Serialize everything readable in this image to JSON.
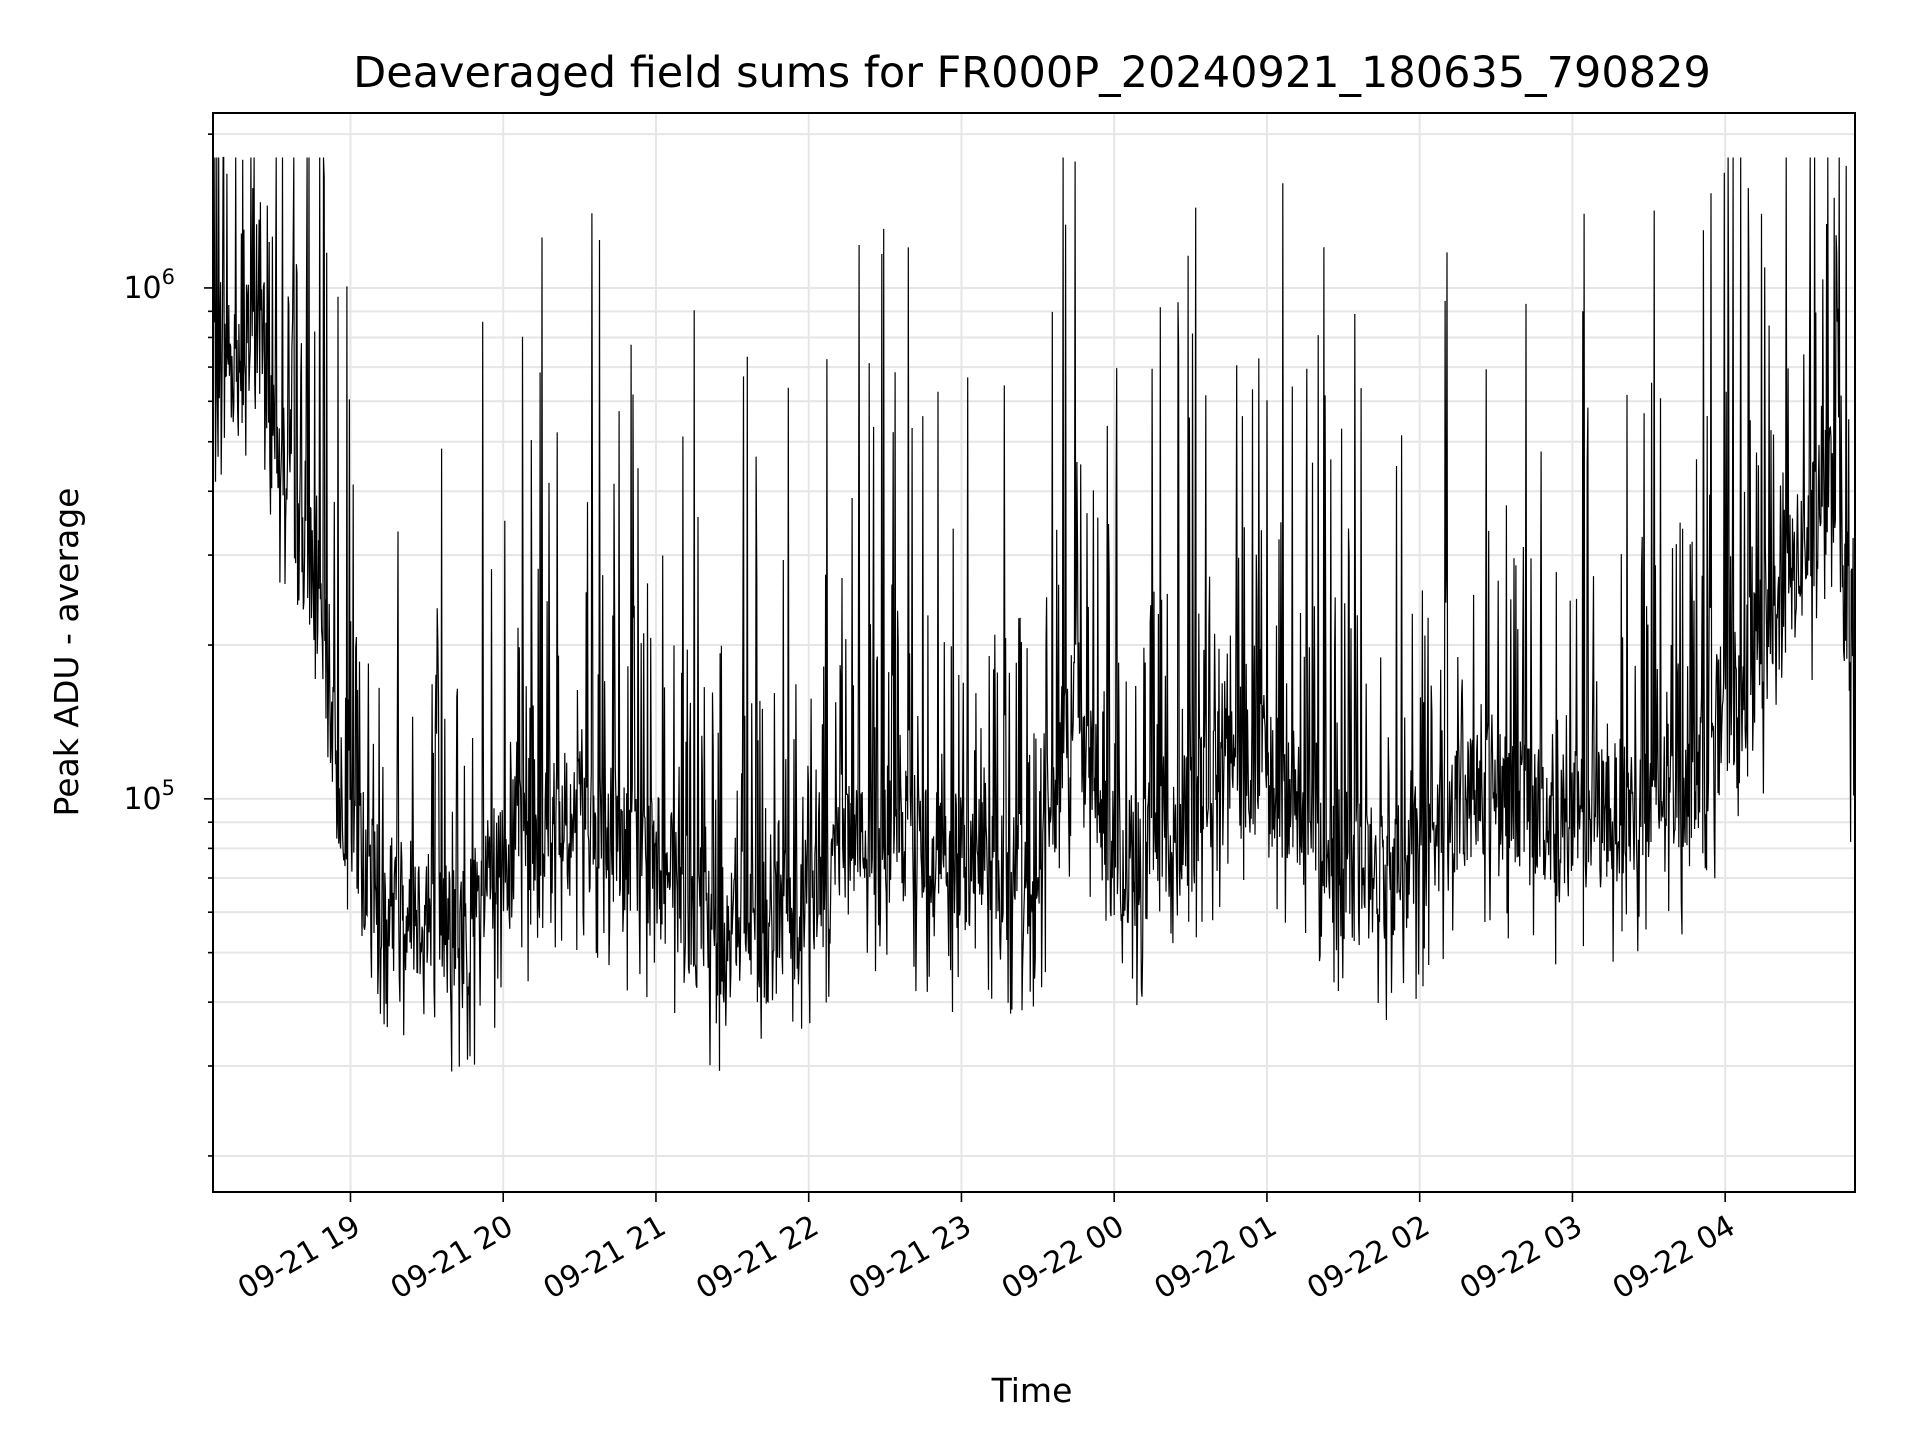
{
  "chart_data": {
    "type": "line",
    "title": "Deaveraged field sums for FR000P_20240921_180635_790829",
    "xlabel": "Time",
    "ylabel": "Peak ADU - average",
    "yscale": "log",
    "ylim": [
      17000,
      2200000
    ],
    "xlim": [
      "09-21 18:06",
      "09-22 04:51"
    ],
    "grid": true,
    "line_color": "#000000",
    "x_ticks": [
      "09-21 19",
      "09-21 20",
      "09-21 21",
      "09-21 22",
      "09-21 23",
      "09-22 00",
      "09-22 01",
      "09-22 02",
      "09-22 03",
      "09-22 04"
    ],
    "y_ticks": [
      {
        "base": "10",
        "exp": "5",
        "value": 100000
      },
      {
        "base": "10",
        "exp": "6",
        "value": 1000000
      }
    ],
    "series": [
      {
        "x": [
          "09-21 18:06",
          "09-21 18:15",
          "09-21 18:25",
          "09-21 18:35",
          "09-21 18:45",
          "09-21 18:55",
          "09-21 19:10",
          "09-21 19:30",
          "09-21 19:45",
          "09-21 20:00",
          "09-21 20:15",
          "09-21 20:30",
          "09-21 20:45",
          "09-21 21:00",
          "09-21 21:15",
          "09-21 21:30",
          "09-21 21:45",
          "09-21 22:00",
          "09-21 22:15",
          "09-21 22:30",
          "09-21 22:45",
          "09-21 23:00",
          "09-21 23:15",
          "09-21 23:30",
          "09-21 23:45",
          "09-22 00:00",
          "09-22 00:15",
          "09-22 00:30",
          "09-22 00:45",
          "09-22 01:00",
          "09-22 01:15",
          "09-22 01:30",
          "09-22 01:45",
          "09-22 02:00",
          "09-22 02:15",
          "09-22 02:30",
          "09-22 02:45",
          "09-22 03:00",
          "09-22 03:15",
          "09-22 03:30",
          "09-22 03:45",
          "09-22 04:00",
          "09-22 04:15",
          "09-22 04:30",
          "09-22 04:45",
          "09-22 04:51"
        ],
        "y": [
          850000,
          700000,
          800000,
          450000,
          300000,
          110000,
          65000,
          60000,
          55000,
          75000,
          95000,
          90000,
          85000,
          75000,
          60000,
          55000,
          55000,
          65000,
          90000,
          85000,
          80000,
          75000,
          70000,
          75000,
          160000,
          75000,
          80000,
          90000,
          130000,
          110000,
          100000,
          80000,
          70000,
          80000,
          100000,
          110000,
          95000,
          90000,
          95000,
          95000,
          110000,
          150000,
          200000,
          300000,
          450000,
          100000
        ]
      }
    ]
  }
}
